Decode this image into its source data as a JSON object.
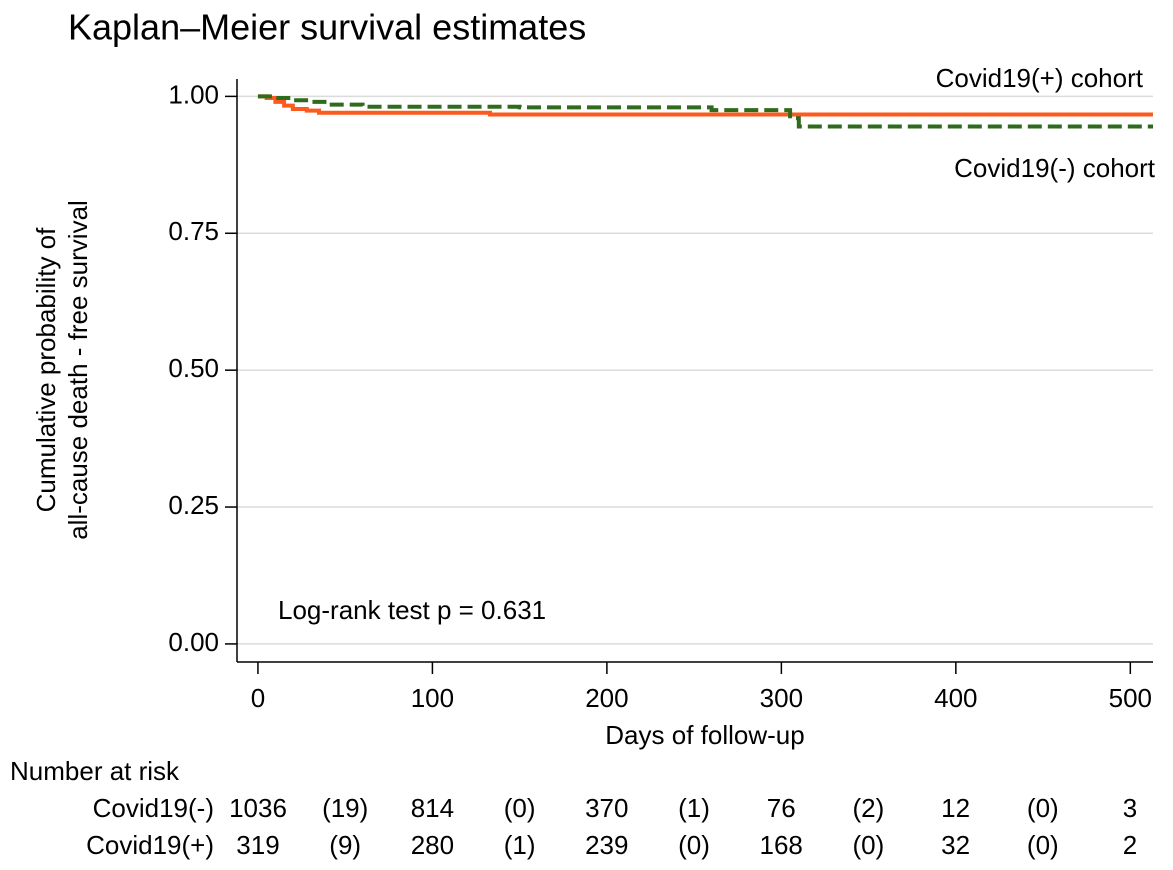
{
  "chart_data": {
    "type": "step",
    "title": "Kaplan–Meier survival estimates",
    "x_label": "Days of follow-up",
    "y_label": [
      "Cumulative probability of",
      "all-cause death - free survival"
    ],
    "annotation": "Log-rank test p = 0.631",
    "xlim": [
      -12,
      513
    ],
    "ylim": [
      -0.033,
      1.05
    ],
    "xticks": [
      0,
      100,
      200,
      300,
      400,
      500
    ],
    "yticks": [
      {
        "value": 0,
        "label": "0.00"
      },
      0.25,
      {
        "value": 0.5,
        "label": "0.50"
      },
      0.75,
      {
        "value": 1,
        "label": "1.00"
      }
    ],
    "grid": true,
    "series": [
      {
        "name": "Covid19(+) cohort",
        "color": "#fc5a1e",
        "dash": false,
        "x": [
          0,
          5,
          10,
          15,
          20,
          28,
          35,
          133,
          513
        ],
        "values": [
          1.0,
          0.997,
          0.99,
          0.983,
          0.977,
          0.974,
          0.97,
          0.967,
          0.967
        ]
      },
      {
        "name": "Covid19(-) cohort",
        "color": "#2e6b1d",
        "dash": true,
        "x": [
          0,
          10,
          20,
          30,
          40,
          60,
          150,
          260,
          305,
          310,
          513
        ],
        "values": [
          1.0,
          0.997,
          0.993,
          0.99,
          0.985,
          0.981,
          0.98,
          0.975,
          0.96,
          0.945,
          0.945
        ]
      }
    ],
    "risk_table": {
      "title": "Number at risk",
      "rows": [
        {
          "name": "Covid19(-)",
          "cells": [
            "1036",
            "(19)",
            "814",
            "(0)",
            "370",
            "(1)",
            "76",
            "(2)",
            "12",
            "(0)",
            "3"
          ]
        },
        {
          "name": "Covid19(+)",
          "cells": [
            "319",
            "(9)",
            "280",
            "(1)",
            "239",
            "(0)",
            "168",
            "(0)",
            "32",
            "(0)",
            "2"
          ]
        }
      ]
    }
  }
}
